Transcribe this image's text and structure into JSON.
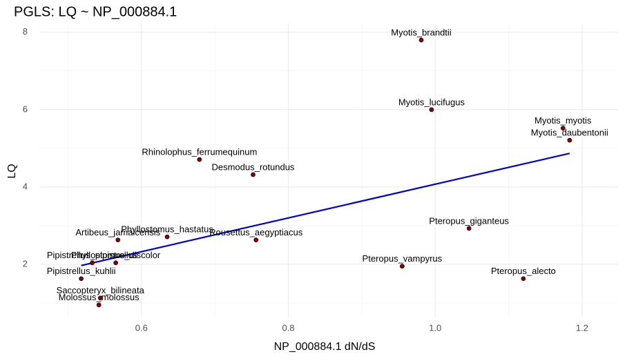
{
  "chart_data": {
    "type": "scatter",
    "title": "PGLS: LQ ~ NP_000884.1",
    "x_label": "NP_000884.1 dN/dS",
    "y_label": "LQ",
    "labels": [
      "Myotis_brandtii",
      "Myotis_lucifugus",
      "Myotis_myotis",
      "Myotis_daubentonii",
      "Rhinolophus_ferrumequinum",
      "Desmodus_rotundus",
      "Pteropus_giganteus",
      "Phyllostomus_hastatus",
      "Artibeus_jamaicensis",
      "Rousettus_aegyptiacus",
      "Pteropus_vampyrus",
      "Pipistrellus_pipistrellus",
      "Phyllostomus_discolor",
      "Pteropus_alecto",
      "Pipistrellus_kuhlii",
      "Saccopteryx_bilineata",
      "Molossus_molossus"
    ],
    "x": [
      0.981,
      0.995,
      1.174,
      1.183,
      0.679,
      0.752,
      1.046,
      0.635,
      0.568,
      0.756,
      0.955,
      0.533,
      0.565,
      1.12,
      0.518,
      0.544,
      0.542
    ],
    "y": [
      7.8,
      6.0,
      5.52,
      5.21,
      4.71,
      4.32,
      2.93,
      2.71,
      2.63,
      2.63,
      1.95,
      2.04,
      2.04,
      1.63,
      1.63,
      1.13,
      0.95
    ],
    "color": "#8b0000",
    "fit_line": {
      "x": [
        0.518,
        1.183
      ],
      "y": [
        1.97,
        4.87
      ],
      "color": "#0000cd"
    },
    "xlim": [
      0.461,
      1.249
    ],
    "ylim": [
      0.625,
      8.21
    ],
    "xticks": [
      0.6,
      0.8,
      {
        "value": 1.0,
        "label": "1.0"
      },
      1.2
    ],
    "yticks": [
      2,
      4,
      6,
      8
    ],
    "grid": true
  }
}
